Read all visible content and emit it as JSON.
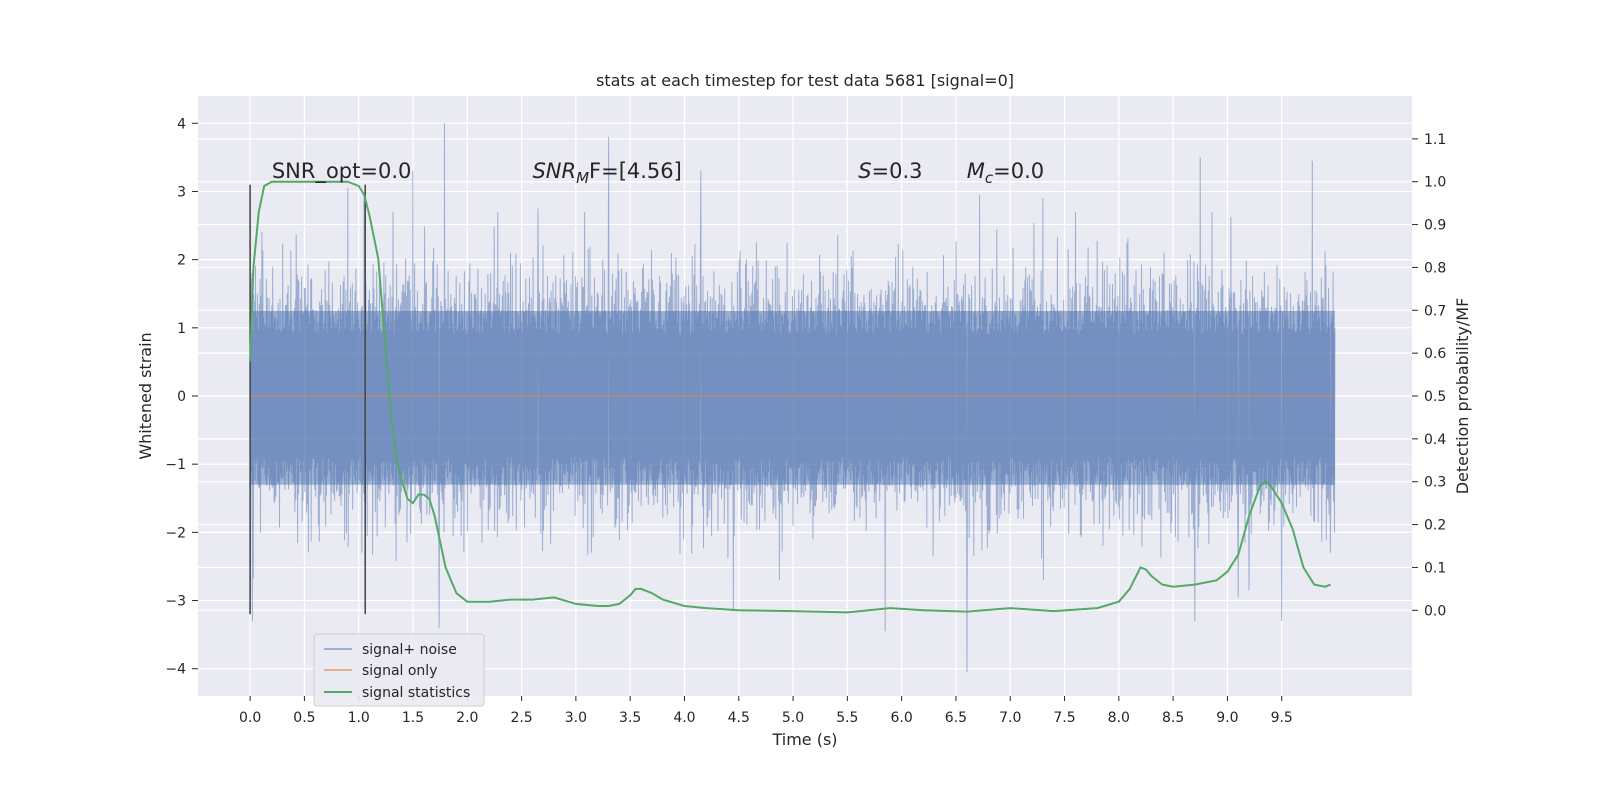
{
  "chart_data": {
    "type": "line",
    "title": "stats at each timestep for test data 5681 [signal=0]",
    "xlabel": "Time (s)",
    "ylabel": "Whitened strain",
    "y2label": "Detection probability/MF",
    "xlim": [
      -0.48,
      10.7
    ],
    "ylim": [
      -4.4,
      4.4
    ],
    "y2lim": [
      -0.2,
      1.2
    ],
    "x_ticks": [
      0.0,
      0.5,
      1.0,
      1.5,
      2.0,
      2.5,
      3.0,
      3.5,
      4.0,
      4.5,
      5.0,
      5.5,
      6.0,
      6.5,
      7.0,
      7.5,
      8.0,
      8.5,
      9.0,
      9.5
    ],
    "x_tick_labels": [
      "0.0",
      "0.5",
      "1.0",
      "1.5",
      "2.0",
      "2.5",
      "3.0",
      "3.5",
      "4.0",
      "4.5",
      "5.0",
      "5.5",
      "6.0",
      "6.5",
      "7.0",
      "7.5",
      "8.0",
      "8.5",
      "9.0",
      "9.5"
    ],
    "y_ticks": [
      -4,
      -3,
      -2,
      -1,
      0,
      1,
      2,
      3,
      4
    ],
    "y_tick_labels": [
      "−4",
      "−3",
      "−2",
      "−1",
      "0",
      "1",
      "2",
      "3",
      "4"
    ],
    "y2_ticks": [
      0.0,
      0.1,
      0.2,
      0.3,
      0.4,
      0.5,
      0.6,
      0.7,
      0.8,
      0.9,
      1.0,
      1.1
    ],
    "y2_tick_labels": [
      "0.0",
      "0.1",
      "0.2",
      "0.3",
      "0.4",
      "0.5",
      "0.6",
      "0.7",
      "0.8",
      "0.9",
      "1.0",
      "1.1"
    ],
    "grid": true,
    "legend_position": "lower-left",
    "series": [
      {
        "name": "signal+ noise",
        "color": "#4c72b0",
        "axis": "left",
        "style": "dense-noise",
        "x_range": [
          0.0,
          9.99
        ],
        "band": [
          -1.3,
          1.25
        ],
        "peaks": [
          {
            "x": 0.0,
            "y": -3.2
          },
          {
            "x": 0.02,
            "y": -3.3
          },
          {
            "x": 0.9,
            "y": 3.05
          },
          {
            "x": 1.05,
            "y": 2.9
          },
          {
            "x": 1.5,
            "y": 3.3
          },
          {
            "x": 1.79,
            "y": 4.0
          },
          {
            "x": 1.74,
            "y": -3.4
          },
          {
            "x": 2.65,
            "y": 2.75
          },
          {
            "x": 3.3,
            "y": 3.8
          },
          {
            "x": 4.15,
            "y": 3.3
          },
          {
            "x": 4.45,
            "y": -3.15
          },
          {
            "x": 5.85,
            "y": -3.45
          },
          {
            "x": 6.6,
            "y": -4.05
          },
          {
            "x": 6.72,
            "y": 2.95
          },
          {
            "x": 7.3,
            "y": 2.9
          },
          {
            "x": 8.7,
            "y": -3.3
          },
          {
            "x": 9.1,
            "y": -2.95
          },
          {
            "x": 9.2,
            "y": -2.85
          },
          {
            "x": 9.5,
            "y": -3.3
          },
          {
            "x": 8.75,
            "y": 3.5
          },
          {
            "x": 9.78,
            "y": 3.45
          },
          {
            "x": 9.95,
            "y": -2.3
          }
        ]
      },
      {
        "name": "signal only",
        "color": "#dd8452",
        "axis": "left",
        "x": [
          0.0,
          9.99
        ],
        "y": [
          0.0,
          0.0
        ]
      },
      {
        "name": "signal statistics",
        "color": "#55a868",
        "axis": "right",
        "x": [
          0.0,
          0.03,
          0.08,
          0.13,
          0.2,
          0.3,
          0.5,
          0.7,
          0.9,
          1.0,
          1.05,
          1.1,
          1.18,
          1.25,
          1.3,
          1.35,
          1.4,
          1.45,
          1.5,
          1.55,
          1.6,
          1.65,
          1.7,
          1.8,
          1.9,
          2.0,
          2.2,
          2.4,
          2.6,
          2.8,
          3.0,
          3.2,
          3.3,
          3.4,
          3.5,
          3.55,
          3.6,
          3.7,
          3.8,
          4.0,
          4.2,
          4.5,
          5.0,
          5.5,
          5.9,
          6.2,
          6.6,
          7.0,
          7.4,
          7.8,
          8.0,
          8.1,
          8.2,
          8.25,
          8.3,
          8.4,
          8.5,
          8.7,
          8.9,
          9.0,
          9.1,
          9.2,
          9.3,
          9.35,
          9.4,
          9.5,
          9.6,
          9.7,
          9.8,
          9.9,
          9.95
        ],
        "y": [
          0.58,
          0.8,
          0.93,
          0.99,
          1.0,
          1.0,
          1.0,
          1.0,
          1.0,
          0.99,
          0.97,
          0.92,
          0.82,
          0.6,
          0.45,
          0.35,
          0.3,
          0.26,
          0.25,
          0.27,
          0.27,
          0.26,
          0.22,
          0.1,
          0.04,
          0.02,
          0.02,
          0.025,
          0.025,
          0.03,
          0.015,
          0.01,
          0.01,
          0.015,
          0.035,
          0.05,
          0.05,
          0.04,
          0.025,
          0.01,
          0.005,
          0.0,
          -0.002,
          -0.005,
          0.005,
          0.0,
          -0.003,
          0.005,
          -0.002,
          0.005,
          0.02,
          0.05,
          0.1,
          0.095,
          0.08,
          0.06,
          0.055,
          0.06,
          0.07,
          0.09,
          0.13,
          0.22,
          0.29,
          0.3,
          0.29,
          0.25,
          0.19,
          0.1,
          0.06,
          0.055,
          0.06
        ]
      }
    ],
    "vlines": [
      {
        "x": 0.0,
        "ymin": -3.2,
        "ymax": 3.1
      },
      {
        "x": 1.06,
        "ymin": -3.2,
        "ymax": 3.1
      }
    ],
    "annotations": [
      {
        "x": 0.2,
        "y": 3.2,
        "text": "SNR_opt=0.0",
        "style": "plain"
      },
      {
        "x": 2.6,
        "y": 3.2,
        "base": "SNR",
        "sub": "M",
        "suffix": "F=[4.56]",
        "style": "math"
      },
      {
        "x": 5.6,
        "y": 3.2,
        "base": "S",
        "sub": "",
        "suffix": "=0.3",
        "style": "math"
      },
      {
        "x": 6.6,
        "y": 3.2,
        "base": "M",
        "sub": "c",
        "suffix": "=0.0",
        "style": "math"
      }
    ]
  }
}
